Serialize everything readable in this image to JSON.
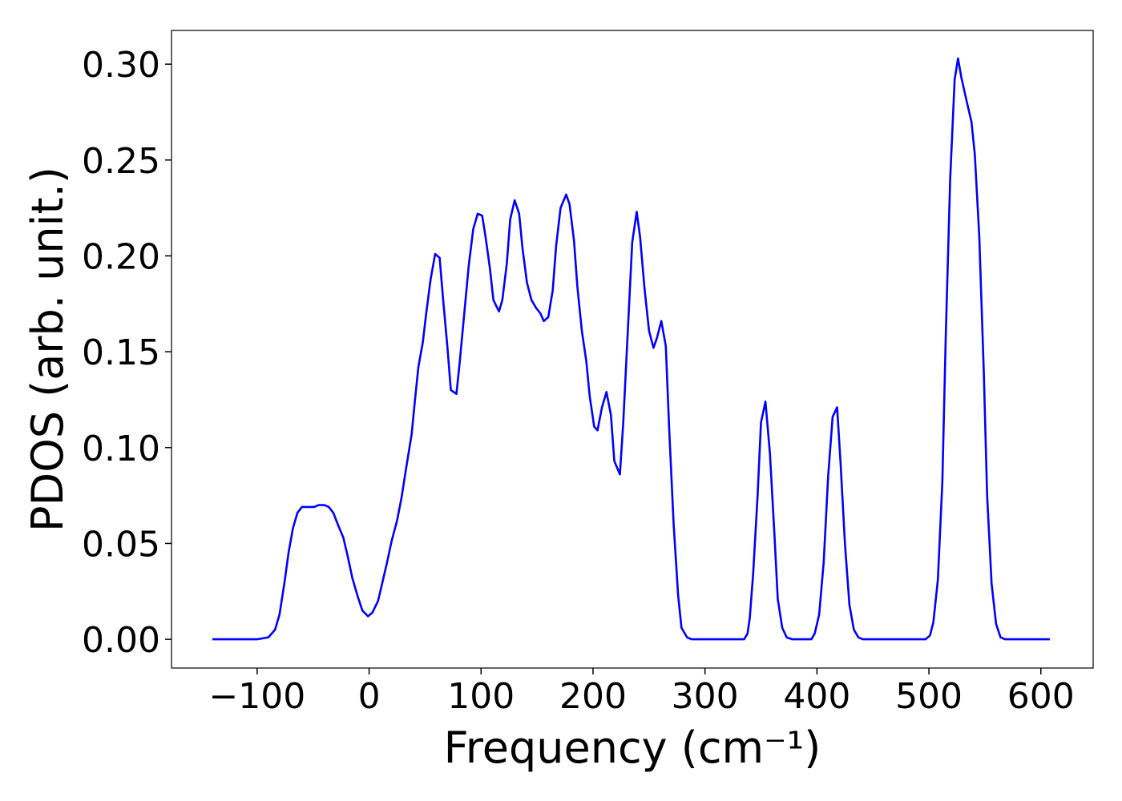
{
  "chart_data": {
    "type": "line",
    "xlabel": "Frequency (cm⁻¹)",
    "ylabel": "PDOS (arb. unit.)",
    "xlim": [
      -176.5,
      646.7
    ],
    "ylim": [
      -0.015,
      0.3176
    ],
    "xticks": [
      {
        "value": -100,
        "label": "−100"
      },
      0,
      100,
      200,
      300,
      400,
      500,
      600
    ],
    "yticks": [
      {
        "value": 0,
        "label": "0.00"
      },
      {
        "value": 0.05,
        "label": "0.05"
      },
      {
        "value": 0.1,
        "label": "0.10"
      },
      {
        "value": 0.15,
        "label": "0.15"
      },
      {
        "value": 0.2,
        "label": "0.20"
      },
      {
        "value": 0.25,
        "label": "0.25"
      },
      {
        "value": 0.3,
        "label": "0.30"
      }
    ],
    "grid": false,
    "series": [
      {
        "color": "#0000ff",
        "x": [
          -140,
          -100,
          -90,
          -84,
          -80,
          -75.5,
          -72,
          -68,
          -64,
          -60,
          -54,
          -49,
          -45,
          -40,
          -36,
          -32,
          -28,
          -23,
          -19,
          -15,
          -10,
          -6,
          -1,
          3,
          8,
          12,
          16,
          20,
          25,
          29,
          33,
          38,
          41,
          44,
          48,
          51,
          55,
          59,
          63,
          66,
          70,
          73,
          78,
          81,
          85,
          89,
          93,
          97,
          101,
          104,
          108,
          111,
          116,
          119,
          123,
          126,
          130,
          134,
          137,
          141,
          145,
          149,
          153,
          156,
          160,
          164,
          167,
          171,
          176,
          179,
          183,
          186,
          190,
          194,
          197,
          201,
          204,
          208,
          212,
          216,
          219,
          224,
          227,
          231,
          235,
          239,
          242,
          246,
          250,
          254,
          257,
          261,
          265,
          268,
          272,
          276,
          279,
          284,
          288,
          335,
          338,
          340,
          343,
          347,
          350,
          354,
          358,
          362,
          365,
          369,
          373,
          378,
          395,
          398,
          402,
          406,
          410,
          414,
          418,
          421,
          425,
          429,
          433,
          437,
          441,
          497,
          501,
          504,
          508,
          512,
          515,
          519,
          523,
          526,
          529,
          534,
          538,
          541,
          545,
          549,
          552,
          556,
          560,
          564,
          568,
          608
        ],
        "values": [
          0,
          0,
          0.001,
          0.005,
          0.013,
          0.03,
          0.045,
          0.058,
          0.066,
          0.069,
          0.069,
          0.069,
          0.07,
          0.07,
          0.069,
          0.066,
          0.06,
          0.053,
          0.043,
          0.032,
          0.022,
          0.015,
          0.012,
          0.014,
          0.02,
          0.03,
          0.04,
          0.051,
          0.062,
          0.074,
          0.089,
          0.107,
          0.125,
          0.142,
          0.155,
          0.17,
          0.188,
          0.201,
          0.199,
          0.178,
          0.152,
          0.13,
          0.128,
          0.145,
          0.17,
          0.195,
          0.214,
          0.222,
          0.221,
          0.21,
          0.193,
          0.177,
          0.171,
          0.177,
          0.196,
          0.219,
          0.229,
          0.222,
          0.204,
          0.186,
          0.177,
          0.173,
          0.17,
          0.166,
          0.168,
          0.182,
          0.205,
          0.225,
          0.232,
          0.227,
          0.208,
          0.184,
          0.161,
          0.145,
          0.127,
          0.111,
          0.109,
          0.121,
          0.129,
          0.117,
          0.093,
          0.086,
          0.113,
          0.16,
          0.207,
          0.223,
          0.21,
          0.183,
          0.161,
          0.152,
          0.157,
          0.166,
          0.153,
          0.11,
          0.06,
          0.023,
          0.006,
          0.001,
          0,
          0,
          0.003,
          0.011,
          0.034,
          0.075,
          0.113,
          0.124,
          0.097,
          0.055,
          0.021,
          0.006,
          0.001,
          0,
          0,
          0.003,
          0.013,
          0.04,
          0.085,
          0.116,
          0.121,
          0.093,
          0.05,
          0.018,
          0.005,
          0.001,
          0,
          0,
          0.002,
          0.009,
          0.031,
          0.082,
          0.157,
          0.24,
          0.292,
          0.303,
          0.293,
          0.28,
          0.27,
          0.253,
          0.21,
          0.14,
          0.075,
          0.029,
          0.008,
          0.001,
          0,
          0
        ]
      }
    ]
  }
}
